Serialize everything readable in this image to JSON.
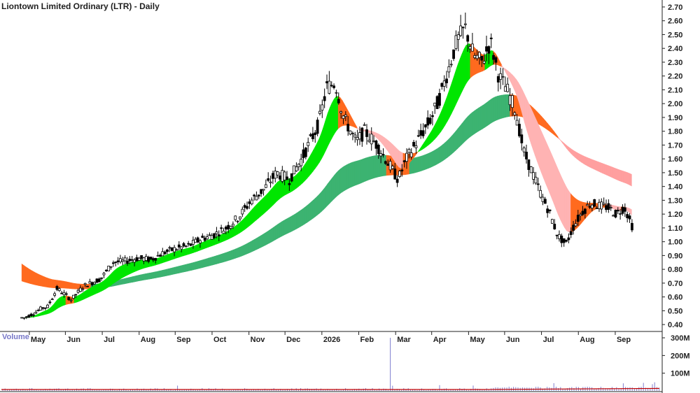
{
  "chart_data": {
    "type": "candlestick",
    "title": "Liontown Limited Ordinary (LTR) - Daily",
    "price_axis": {
      "ylim": [
        0.35,
        2.72
      ],
      "ticks": [
        "0.40",
        "0.50",
        "0.60",
        "0.70",
        "0.80",
        "0.90",
        "1.00",
        "1.10",
        "1.20",
        "1.30",
        "1.40",
        "1.50",
        "1.60",
        "1.70",
        "1.80",
        "1.90",
        "2.00",
        "2.10",
        "2.20",
        "2.30",
        "2.40",
        "2.50",
        "2.60",
        "2.70"
      ]
    },
    "x_axis": {
      "labels": [
        "May",
        "Jun",
        "Jul",
        "Aug",
        "Sep",
        "Oct",
        "Nov",
        "Dec",
        "2026",
        "Feb",
        "Mar",
        "Apr",
        "May",
        "Jun",
        "Jul",
        "Aug",
        "Sep"
      ],
      "label_positions": [
        0.5,
        4.8,
        9.2,
        13.6,
        17.9,
        22.3,
        26.7,
        31.0,
        35.4,
        39.8,
        44.2,
        48.5,
        52.9,
        57.2,
        61.6,
        66.0,
        70.4
      ]
    },
    "price_series": {
      "name": "LTR",
      "x_months": [
        0.0,
        1.0,
        2.0,
        2.7,
        3.8,
        4.5,
        5.5,
        7.0,
        9.0,
        10.5,
        12.0,
        13.5,
        15.0,
        16.5,
        18.0,
        19.5,
        21.0,
        22.5,
        24.0,
        25.5,
        27.0,
        28.5,
        30.0,
        31.5,
        33.0,
        35.0,
        36.0,
        37.0,
        38.0,
        39.5,
        40.5,
        42.0,
        43.5,
        44.5,
        45.5,
        47.0,
        48.5,
        49.5,
        50.5,
        51.5,
        52.5,
        53.5,
        54.5,
        55.5,
        56.5,
        57.5,
        58.5,
        59.5,
        60.5,
        61.5,
        62.5,
        63.5,
        64.5,
        65.5,
        66.5,
        67.5,
        68.5,
        69.5,
        70.5,
        71.5,
        72.5
      ],
      "close": [
        0.45,
        0.48,
        0.52,
        0.53,
        0.66,
        0.63,
        0.58,
        0.68,
        0.73,
        0.85,
        0.86,
        0.88,
        0.87,
        0.92,
        0.95,
        0.97,
        1.02,
        1.05,
        1.1,
        1.18,
        1.3,
        1.38,
        1.5,
        1.45,
        1.6,
        1.85,
        2.12,
        2.15,
        1.9,
        1.72,
        1.8,
        1.7,
        1.55,
        1.45,
        1.6,
        1.75,
        1.9,
        2.05,
        2.25,
        2.45,
        2.55,
        2.35,
        2.3,
        2.45,
        2.2,
        2.1,
        1.95,
        1.65,
        1.5,
        1.35,
        1.22,
        1.05,
        0.98,
        1.12,
        1.22,
        1.28,
        1.26,
        1.25,
        1.2,
        1.25,
        1.1
      ]
    },
    "bands": [
      {
        "type": "short_term_ema_band",
        "colors": {
          "up": "#00e600",
          "down": "#ff6a1f",
          "caution": "#ffb3b3"
        }
      },
      {
        "type": "long_term_ema_band",
        "colors": {
          "up": "#3cb371",
          "down": "#ff6a1f",
          "caution": "#ff9f9f"
        }
      }
    ],
    "volume_axis": {
      "label": "Volume",
      "ticks": [
        "100M",
        "200M",
        "300M"
      ],
      "ylim": [
        0,
        320
      ]
    },
    "volume_spike": {
      "x_month": 43.5,
      "value": 300
    },
    "grid": false
  }
}
